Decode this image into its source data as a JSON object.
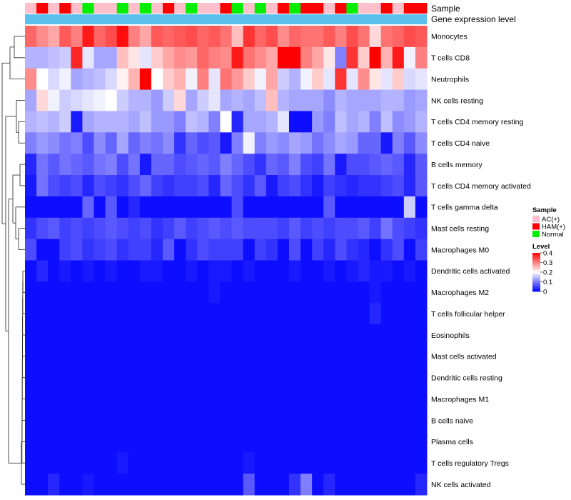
{
  "chart_data": {
    "type": "heatmap",
    "title": "",
    "annotation_tracks": [
      {
        "name": "Sample",
        "kind": "categorical"
      },
      {
        "name": "Gene expression level",
        "kind": "constant"
      }
    ],
    "sample_groups": [
      "AC(+)",
      "HAM(+)",
      "AC(+)",
      "HAM(+)",
      "AC(+)",
      "Normal",
      "AC(+)",
      "AC(+)",
      "Normal",
      "AC(+)",
      "Normal",
      "AC(+)",
      "HAM(+)",
      "AC(+)",
      "Normal",
      "AC(+)",
      "AC(+)",
      "HAM(+)",
      "Normal",
      "AC(+)",
      "Normal",
      "AC(+)",
      "HAM(+)",
      "Normal",
      "HAM(+)",
      "HAM(+)",
      "AC(+)",
      "HAM(+)",
      "Normal",
      "AC(+)",
      "AC(+)",
      "HAM(+)",
      "AC(+)",
      "HAM(+)",
      "HAM(+)"
    ],
    "row_labels": [
      "Monocytes",
      "T cells CD8",
      "Neutrophils",
      "NK cells resting",
      "T cells CD4 memory resting",
      "T cells CD4 naive",
      "B cells memory",
      "T cells CD4 memory activated",
      "T cells gamma delta",
      "Mast cells resting",
      "Macrophages M0",
      "Dendritic cells activated",
      "Macrophages M2",
      "T cells follicular helper",
      "Eosinophils",
      "Mast cells activated",
      "Dendritic cells resting",
      "Macrophages M1",
      "B cells naive",
      "Plasma cells",
      "T cells regulatory  Tregs",
      "NK cells activated"
    ],
    "values": [
      [
        0.32,
        0.29,
        0.27,
        0.33,
        0.3,
        0.38,
        0.32,
        0.34,
        0.39,
        0.3,
        0.27,
        0.33,
        0.32,
        0.33,
        0.34,
        0.32,
        0.33,
        0.31,
        0.25,
        0.36,
        0.32,
        0.34,
        0.29,
        0.32,
        0.31,
        0.31,
        0.33,
        0.3,
        0.34,
        0.31,
        0.23,
        0.31,
        0.32,
        0.34,
        0.33
      ],
      [
        0.14,
        0.14,
        0.15,
        0.16,
        0.37,
        0.18,
        0.13,
        0.13,
        0.25,
        0.22,
        0.18,
        0.24,
        0.27,
        0.29,
        0.28,
        0.32,
        0.3,
        0.29,
        0.38,
        0.31,
        0.29,
        0.27,
        0.4,
        0.4,
        0.3,
        0.27,
        0.22,
        0.1,
        0.36,
        0.24,
        0.4,
        0.26,
        0.38,
        0.19,
        0.3
      ],
      [
        0.29,
        0.2,
        0.17,
        0.19,
        0.13,
        0.14,
        0.15,
        0.17,
        0.21,
        0.26,
        0.4,
        0.2,
        0.24,
        0.26,
        0.19,
        0.3,
        0.18,
        0.31,
        0.28,
        0.24,
        0.19,
        0.27,
        0.16,
        0.14,
        0.19,
        0.24,
        0.18,
        0.36,
        0.18,
        0.29,
        0.22,
        0.18,
        0.24,
        0.17,
        0.18
      ],
      [
        0.13,
        0.23,
        0.19,
        0.16,
        0.17,
        0.18,
        0.19,
        0.2,
        0.16,
        0.14,
        0.14,
        0.12,
        0.16,
        0.23,
        0.13,
        0.16,
        0.18,
        0.13,
        0.14,
        0.13,
        0.15,
        0.25,
        0.14,
        0.13,
        0.13,
        0.13,
        0.11,
        0.14,
        0.13,
        0.13,
        0.13,
        0.14,
        0.14,
        0.12,
        0.13
      ],
      [
        0.14,
        0.15,
        0.14,
        0.16,
        0.02,
        0.13,
        0.14,
        0.14,
        0.14,
        0.13,
        0.15,
        0.12,
        0.12,
        0.1,
        0.15,
        0.14,
        0.1,
        0.2,
        0.03,
        0.13,
        0.13,
        0.14,
        0.18,
        0.01,
        0.01,
        0.12,
        0.1,
        0.15,
        0.13,
        0.14,
        0.1,
        0.15,
        0.11,
        0.12,
        0.14
      ],
      [
        0.1,
        0.12,
        0.11,
        0.09,
        0.1,
        0.06,
        0.11,
        0.08,
        0.13,
        0.08,
        0.1,
        0.09,
        0.11,
        0.04,
        0.08,
        0.06,
        0.07,
        0.02,
        0.1,
        0.19,
        0.1,
        0.12,
        0.11,
        0.13,
        0.12,
        0.09,
        0.11,
        0.13,
        0.12,
        0.08,
        0.08,
        0.02,
        0.1,
        0.07,
        0.11
      ],
      [
        0.03,
        0.09,
        0.07,
        0.09,
        0.08,
        0.07,
        0.09,
        0.1,
        0.06,
        0.09,
        0.02,
        0.08,
        0.08,
        0.06,
        0.07,
        0.08,
        0.07,
        0.1,
        0.08,
        0.06,
        0.04,
        0.08,
        0.07,
        0.1,
        0.06,
        0.05,
        0.09,
        0.02,
        0.06,
        0.06,
        0.07,
        0.08,
        0.07,
        0.03,
        0.07
      ],
      [
        0.02,
        0.09,
        0.06,
        0.05,
        0.06,
        0.03,
        0.06,
        0.05,
        0.04,
        0.06,
        0.08,
        0.05,
        0.04,
        0.05,
        0.05,
        0.06,
        0.03,
        0.08,
        0.06,
        0.04,
        0.07,
        0.02,
        0.05,
        0.06,
        0.04,
        0.02,
        0.05,
        0.04,
        0.03,
        0.04,
        0.04,
        0.05,
        0.06,
        0.03,
        0.07
      ],
      [
        0.01,
        0.01,
        0.01,
        0.01,
        0.01,
        0.08,
        0.01,
        0.07,
        0.01,
        0.03,
        0.01,
        0.01,
        0.01,
        0.01,
        0.01,
        0.01,
        0.01,
        0.01,
        0.06,
        0.01,
        0.01,
        0.01,
        0.01,
        0.01,
        0.01,
        0.01,
        0.07,
        0.01,
        0.01,
        0.01,
        0.01,
        0.01,
        0.01,
        0.16,
        0.01
      ],
      [
        0.04,
        0.06,
        0.07,
        0.05,
        0.06,
        0.05,
        0.06,
        0.07,
        0.06,
        0.05,
        0.06,
        0.04,
        0.05,
        0.07,
        0.05,
        0.06,
        0.07,
        0.06,
        0.07,
        0.06,
        0.06,
        0.06,
        0.05,
        0.07,
        0.05,
        0.06,
        0.05,
        0.06,
        0.06,
        0.07,
        0.05,
        0.09,
        0.06,
        0.05,
        0.04
      ],
      [
        0.06,
        0.01,
        0.01,
        0.05,
        0.06,
        0.04,
        0.05,
        0.06,
        0.04,
        0.05,
        0.05,
        0.03,
        0.07,
        0.01,
        0.04,
        0.06,
        0.05,
        0.05,
        0.05,
        0.01,
        0.05,
        0.04,
        0.01,
        0.06,
        0.01,
        0.05,
        0.03,
        0.06,
        0.04,
        0.03,
        0.01,
        0.04,
        0.06,
        0.01,
        0.05
      ],
      [
        0.01,
        0.03,
        0.01,
        0.02,
        0.01,
        0.02,
        0.01,
        0.02,
        0.01,
        0.01,
        0.02,
        0.02,
        0.01,
        0.01,
        0.02,
        0.01,
        0.02,
        0.02,
        0.01,
        0.02,
        0.01,
        0.01,
        0.01,
        0.02,
        0.01,
        0.01,
        0.02,
        0.01,
        0.02,
        0.03,
        0.02,
        0.02,
        0.01,
        0.02,
        0.01
      ],
      [
        0.01,
        0.01,
        0.01,
        0.01,
        0.01,
        0.01,
        0.01,
        0.01,
        0.01,
        0.01,
        0.01,
        0.01,
        0.01,
        0.01,
        0.01,
        0.01,
        0.02,
        0.01,
        0.01,
        0.01,
        0.01,
        0.01,
        0.01,
        0.01,
        0.01,
        0.01,
        0.01,
        0.01,
        0.01,
        0.01,
        0.02,
        0.01,
        0.01,
        0.01,
        0.01
      ],
      [
        0.01,
        0.01,
        0.01,
        0.01,
        0.01,
        0.01,
        0.01,
        0.01,
        0.01,
        0.01,
        0.01,
        0.01,
        0.01,
        0.01,
        0.01,
        0.01,
        0.01,
        0.01,
        0.01,
        0.01,
        0.01,
        0.01,
        0.01,
        0.01,
        0.01,
        0.01,
        0.01,
        0.01,
        0.01,
        0.01,
        0.03,
        0.01,
        0.01,
        0.01,
        0.01
      ],
      [
        0.01,
        0.01,
        0.01,
        0.01,
        0.01,
        0.01,
        0.01,
        0.01,
        0.01,
        0.01,
        0.01,
        0.01,
        0.01,
        0.01,
        0.01,
        0.01,
        0.01,
        0.01,
        0.01,
        0.01,
        0.01,
        0.01,
        0.01,
        0.01,
        0.01,
        0.01,
        0.01,
        0.01,
        0.01,
        0.01,
        0.01,
        0.01,
        0.01,
        0.01,
        0.01
      ],
      [
        0.01,
        0.01,
        0.01,
        0.01,
        0.01,
        0.01,
        0.01,
        0.01,
        0.01,
        0.01,
        0.01,
        0.01,
        0.01,
        0.01,
        0.01,
        0.01,
        0.01,
        0.01,
        0.01,
        0.01,
        0.01,
        0.01,
        0.01,
        0.01,
        0.01,
        0.01,
        0.01,
        0.01,
        0.01,
        0.01,
        0.01,
        0.01,
        0.01,
        0.01,
        0.01
      ],
      [
        0.01,
        0.01,
        0.01,
        0.01,
        0.01,
        0.01,
        0.01,
        0.01,
        0.01,
        0.01,
        0.01,
        0.01,
        0.01,
        0.01,
        0.01,
        0.01,
        0.01,
        0.01,
        0.01,
        0.01,
        0.01,
        0.01,
        0.01,
        0.01,
        0.01,
        0.01,
        0.01,
        0.01,
        0.01,
        0.01,
        0.01,
        0.01,
        0.01,
        0.01,
        0.01
      ],
      [
        0.01,
        0.01,
        0.01,
        0.01,
        0.01,
        0.01,
        0.01,
        0.01,
        0.01,
        0.01,
        0.01,
        0.01,
        0.01,
        0.01,
        0.01,
        0.01,
        0.01,
        0.01,
        0.01,
        0.01,
        0.01,
        0.01,
        0.01,
        0.01,
        0.01,
        0.01,
        0.01,
        0.01,
        0.01,
        0.01,
        0.01,
        0.01,
        0.01,
        0.01,
        0.01
      ],
      [
        0.01,
        0.01,
        0.01,
        0.01,
        0.01,
        0.01,
        0.01,
        0.01,
        0.01,
        0.01,
        0.01,
        0.01,
        0.01,
        0.01,
        0.01,
        0.01,
        0.01,
        0.01,
        0.01,
        0.01,
        0.01,
        0.01,
        0.01,
        0.01,
        0.01,
        0.01,
        0.01,
        0.01,
        0.01,
        0.01,
        0.01,
        0.01,
        0.01,
        0.01,
        0.01
      ],
      [
        0.01,
        0.01,
        0.01,
        0.01,
        0.01,
        0.01,
        0.01,
        0.01,
        0.01,
        0.01,
        0.01,
        0.01,
        0.01,
        0.01,
        0.01,
        0.01,
        0.01,
        0.01,
        0.01,
        0.01,
        0.01,
        0.01,
        0.01,
        0.01,
        0.01,
        0.01,
        0.01,
        0.01,
        0.01,
        0.01,
        0.01,
        0.01,
        0.01,
        0.01,
        0.01
      ],
      [
        0.01,
        0.01,
        0.01,
        0.01,
        0.01,
        0.01,
        0.01,
        0.01,
        0.02,
        0.01,
        0.01,
        0.01,
        0.01,
        0.01,
        0.01,
        0.01,
        0.01,
        0.01,
        0.01,
        0.02,
        0.01,
        0.01,
        0.01,
        0.01,
        0.01,
        0.01,
        0.01,
        0.01,
        0.01,
        0.01,
        0.01,
        0.01,
        0.01,
        0.01,
        0.01
      ],
      [
        0.01,
        0.01,
        0.03,
        0.01,
        0.01,
        0.02,
        0.01,
        0.01,
        0.01,
        0.01,
        0.01,
        0.01,
        0.01,
        0.01,
        0.01,
        0.01,
        0.01,
        0.01,
        0.01,
        0.07,
        0.01,
        0.01,
        0.01,
        0.04,
        0.1,
        0.01,
        0.03,
        0.01,
        0.01,
        0.01,
        0.01,
        0.01,
        0.01,
        0.01,
        0.03
      ]
    ],
    "color_scale": {
      "min": 0,
      "max": 0.4,
      "colors": [
        "#0000ff",
        "#ffffff",
        "#ff0000"
      ]
    },
    "legend": {
      "sample_title": "Sample",
      "sample_items": [
        {
          "label": "AC(+)",
          "color": "#ffc0cb"
        },
        {
          "label": "HAM(+)",
          "color": "#ff0000"
        },
        {
          "label": "Normal",
          "color": "#00ee00"
        }
      ],
      "level_title": "Level",
      "level_ticks": [
        "0.4",
        "0.3",
        "0.2",
        "0.1",
        "0"
      ],
      "placement": "right"
    },
    "track_colors": {
      "gene_expression_level": "#5bc0eb"
    },
    "row_dendrogram": true
  }
}
